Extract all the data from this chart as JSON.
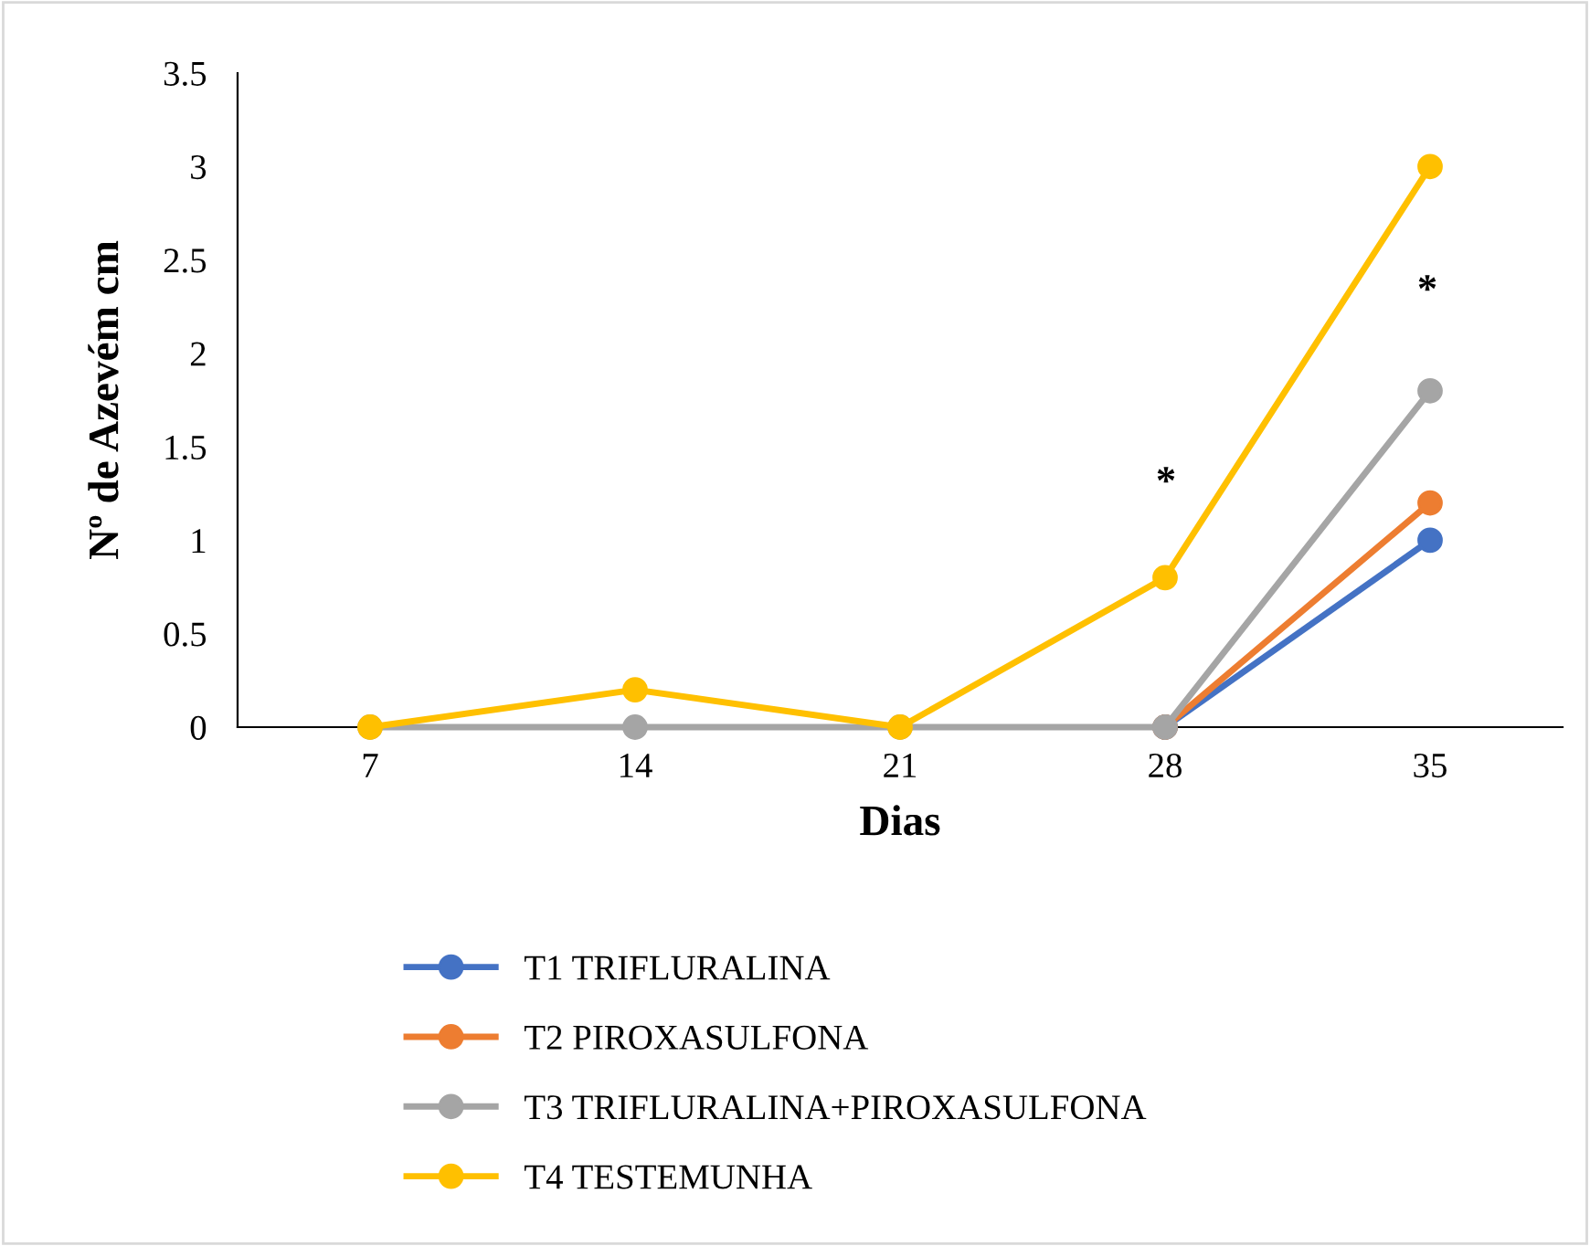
{
  "chart_data": {
    "type": "line",
    "xlabel": "Dias",
    "ylabel": "Nº de Azevém cm",
    "categories": [
      "7",
      "14",
      "21",
      "28",
      "35"
    ],
    "series": [
      {
        "name": "T1 TRIFLURALINA",
        "color": "#4472c4",
        "values": [
          null,
          null,
          null,
          0,
          1
        ]
      },
      {
        "name": "T2 PIROXASULFONA",
        "color": "#ed7d31",
        "values": [
          null,
          null,
          null,
          0,
          1.2
        ]
      },
      {
        "name": "T3 TRIFLURALINA+PIROXASULFONA",
        "color": "#a5a5a5",
        "values": [
          0,
          0,
          0,
          0,
          1.8
        ]
      },
      {
        "name": "T4 TESTEMUNHA",
        "color": "#ffc000",
        "values": [
          0,
          0.2,
          0,
          0.8,
          3
        ]
      }
    ],
    "ylim": [
      0,
      3.5
    ],
    "yticks": [
      0,
      0.5,
      1,
      1.5,
      2,
      2.5,
      3,
      3.5
    ],
    "annotations": [
      "*",
      "*"
    ],
    "marker": "circle",
    "line_style": "solid",
    "grid": false,
    "legend": "bottom"
  }
}
